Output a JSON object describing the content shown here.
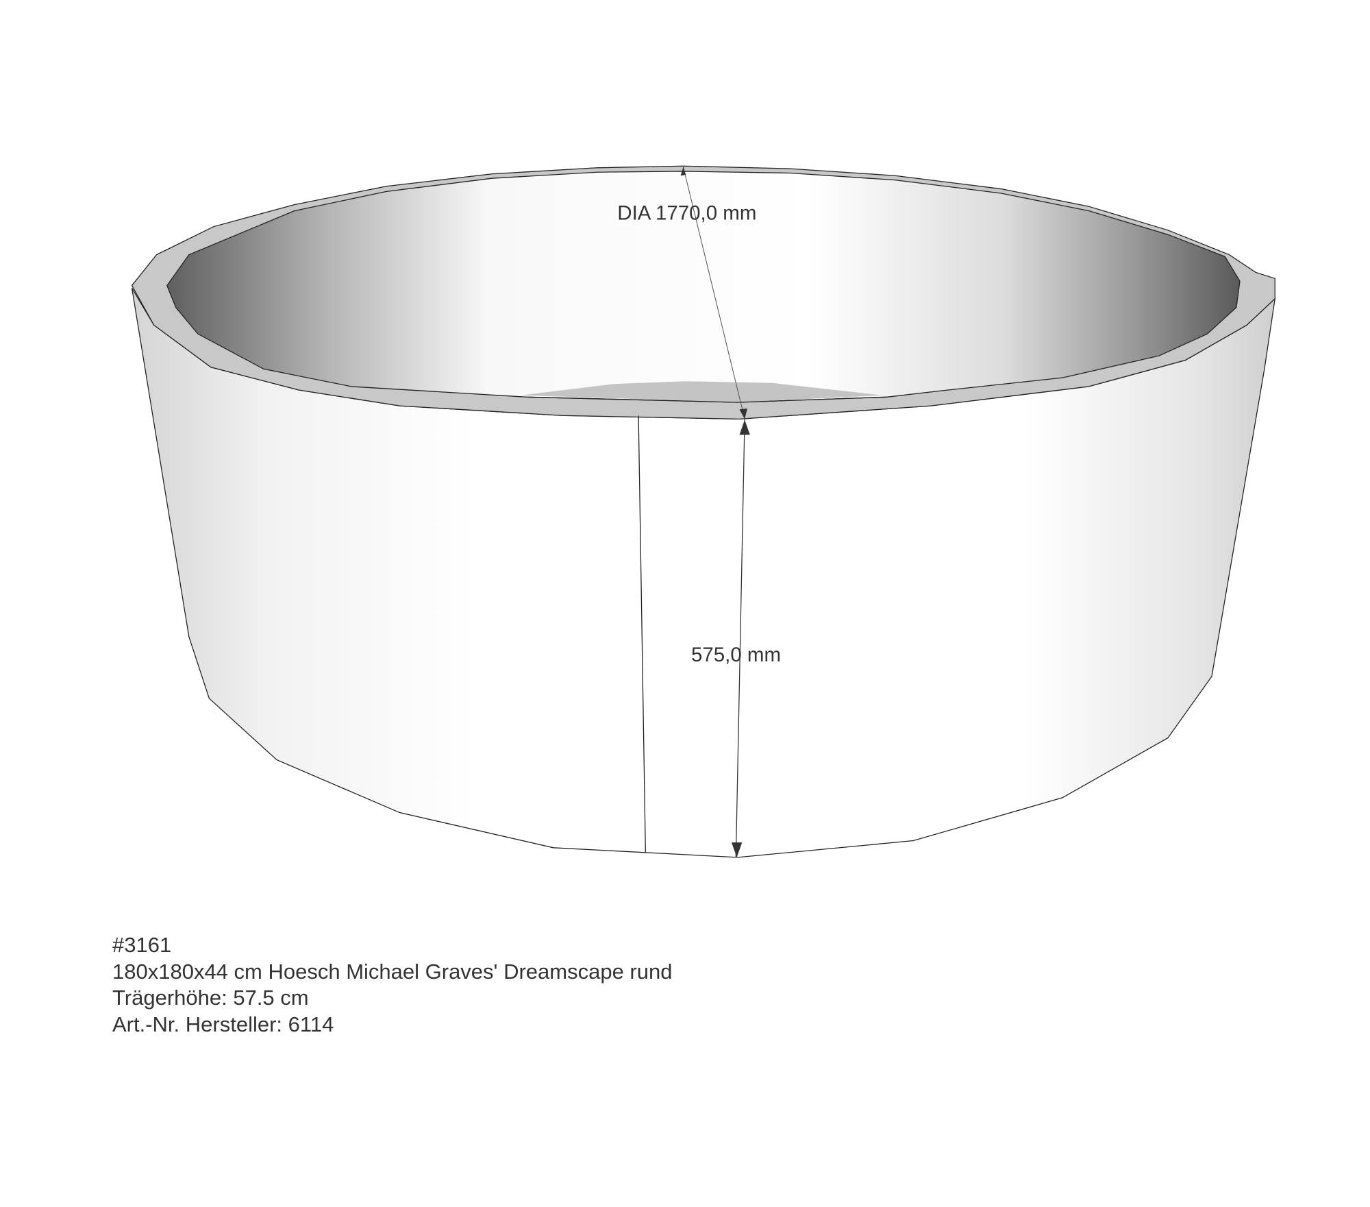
{
  "dimensions": {
    "diameter_label": "DIA 1770,0 mm",
    "height_label": "575,0 mm"
  },
  "info": {
    "id": "#3161",
    "title": "180x180x44 cm Hoesch Michael Graves' Dreamscape rund",
    "carrier_height": "Trägerhöhe: 57.5 cm",
    "article_number": "Art.-Nr. Hersteller: 6114"
  },
  "colors": {
    "rim": "#c8c8c8",
    "outline": "#222222",
    "inner_shadow": "#6a6a6a"
  }
}
